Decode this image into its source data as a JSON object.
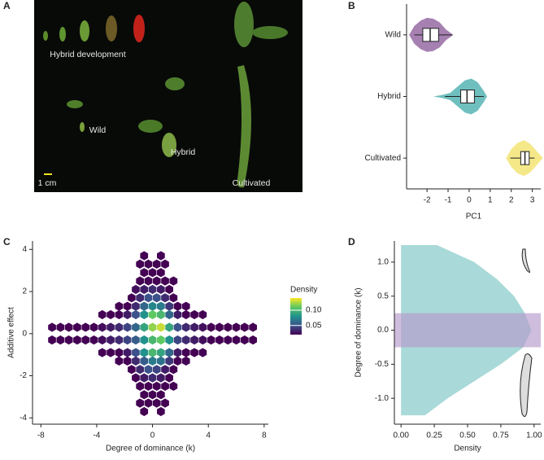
{
  "photo": {
    "panel": "A",
    "labels": [
      "Hybrid development",
      "Wild",
      "Hybrid",
      "Cultivated",
      "1 cm"
    ]
  },
  "chart_data": [
    {
      "type": "box",
      "panel": "B",
      "x_label": "PC1",
      "categories": [
        "Wild",
        "Hybrid",
        "Cultivated"
      ],
      "xlim": [
        -2.97,
        3.4
      ],
      "xticks": [
        -2,
        -1,
        0,
        1,
        2,
        3
      ],
      "boxes": [
        {
          "color": "#9b72a8",
          "min": -2.6,
          "q1": -2.2,
          "median": -1.85,
          "q3": -1.45,
          "max": -0.8,
          "violin_x": [
            -2.85,
            -2.6,
            -2.3,
            -2.0,
            -1.7,
            -1.4,
            -1.1,
            -0.75
          ],
          "violin_w": [
            0,
            0.5,
            0.8,
            0.95,
            0.9,
            0.7,
            0.3,
            0
          ]
        },
        {
          "color": "#5fb8b8",
          "min": -1.15,
          "q1": -0.4,
          "median": -0.1,
          "q3": 0.25,
          "max": 0.7,
          "violin_x": [
            -1.7,
            -1.3,
            -0.9,
            -0.5,
            -0.2,
            0.1,
            0.4,
            0.7,
            0.85
          ],
          "violin_w": [
            0,
            0.08,
            0.2,
            0.6,
            0.9,
            1,
            0.8,
            0.3,
            0
          ]
        },
        {
          "color": "#f3e57c",
          "min": 1.95,
          "q1": 2.45,
          "median": 2.65,
          "q3": 2.85,
          "max": 3.1,
          "violin_x": [
            1.75,
            2.0,
            2.3,
            2.6,
            2.9,
            3.2,
            3.5
          ],
          "violin_w": [
            0,
            0.5,
            0.85,
            1,
            0.8,
            0.4,
            0
          ]
        }
      ]
    },
    {
      "type": "hexbin",
      "panel": "C",
      "x_label": "Degree of dominance (k)",
      "y_label": "Additive effect",
      "xlim": [
        -8.6,
        8.3
      ],
      "ylim": [
        -4.3,
        4.4
      ],
      "xticks": [
        -8,
        -4,
        0,
        4,
        8
      ],
      "yticks": [
        -4,
        -2,
        0,
        2,
        4
      ],
      "colorbar_title": "Density",
      "clim": [
        0.02,
        0.14
      ],
      "cticks": [
        0.05,
        {
          "value": 0.1,
          "label": "0.10"
        }
      ],
      "hexes": [
        [
          -0.6,
          3.7,
          0.01
        ],
        [
          0.6,
          3.7,
          0.01
        ],
        [
          -0.9,
          3.3,
          0.01
        ],
        [
          -0.3,
          3.3,
          0.01
        ],
        [
          0.3,
          3.3,
          0.01
        ],
        [
          0.9,
          3.3,
          0.01
        ],
        [
          -0.6,
          2.9,
          0.015
        ],
        [
          0,
          2.9,
          0.015
        ],
        [
          0.6,
          2.9,
          0.015
        ],
        [
          -0.9,
          2.5,
          0.02
        ],
        [
          -0.3,
          2.5,
          0.02
        ],
        [
          0.3,
          2.5,
          0.02
        ],
        [
          0.9,
          2.5,
          0.02
        ],
        [
          1.5,
          2.5,
          0.01
        ],
        [
          -1.2,
          2.1,
          0.025
        ],
        [
          -0.6,
          2.1,
          0.03
        ],
        [
          0,
          2.1,
          0.035
        ],
        [
          0.6,
          2.1,
          0.03
        ],
        [
          1.2,
          2.1,
          0.02
        ],
        [
          -1.5,
          1.7,
          0.02
        ],
        [
          -0.9,
          1.7,
          0.035
        ],
        [
          -0.3,
          1.7,
          0.05
        ],
        [
          0.3,
          1.7,
          0.05
        ],
        [
          0.9,
          1.7,
          0.035
        ],
        [
          1.5,
          1.7,
          0.02
        ],
        [
          -2.4,
          1.3,
          0.01
        ],
        [
          -1.8,
          1.3,
          0.02
        ],
        [
          -1.2,
          1.3,
          0.035
        ],
        [
          -0.6,
          1.3,
          0.06
        ],
        [
          0,
          1.3,
          0.075
        ],
        [
          0.6,
          1.3,
          0.07
        ],
        [
          1.2,
          1.3,
          0.04
        ],
        [
          1.8,
          1.3,
          0.02
        ],
        [
          2.4,
          1.3,
          0.01
        ],
        [
          -3.6,
          0.9,
          0.01
        ],
        [
          -3,
          0.9,
          0.015
        ],
        [
          -2.4,
          0.9,
          0.02
        ],
        [
          -1.8,
          0.9,
          0.03
        ],
        [
          -1.2,
          0.9,
          0.05
        ],
        [
          -0.6,
          0.9,
          0.08
        ],
        [
          0,
          0.9,
          0.11
        ],
        [
          0.6,
          0.9,
          0.1
        ],
        [
          1.2,
          0.9,
          0.06
        ],
        [
          1.8,
          0.9,
          0.03
        ],
        [
          2.4,
          0.9,
          0.02
        ],
        [
          3,
          0.9,
          0.015
        ],
        [
          3.6,
          0.9,
          0.01
        ],
        [
          -7.2,
          0.3,
          0.01
        ],
        [
          -6.6,
          0.3,
          0.01
        ],
        [
          -6,
          0.3,
          0.015
        ],
        [
          -5.4,
          0.3,
          0.015
        ],
        [
          -4.8,
          0.3,
          0.02
        ],
        [
          -4.2,
          0.3,
          0.02
        ],
        [
          -3.6,
          0.3,
          0.025
        ],
        [
          -3,
          0.3,
          0.03
        ],
        [
          -2.4,
          0.3,
          0.035
        ],
        [
          -1.8,
          0.3,
          0.045
        ],
        [
          -1.2,
          0.3,
          0.06
        ],
        [
          -0.6,
          0.3,
          0.09
        ],
        [
          0,
          0.3,
          0.12
        ],
        [
          0.6,
          0.3,
          0.13
        ],
        [
          1.2,
          0.3,
          0.09
        ],
        [
          1.8,
          0.3,
          0.05
        ],
        [
          2.4,
          0.3,
          0.035
        ],
        [
          3,
          0.3,
          0.03
        ],
        [
          3.6,
          0.3,
          0.025
        ],
        [
          4.2,
          0.3,
          0.02
        ],
        [
          4.8,
          0.3,
          0.02
        ],
        [
          5.4,
          0.3,
          0.015
        ],
        [
          6,
          0.3,
          0.015
        ],
        [
          6.6,
          0.3,
          0.01
        ],
        [
          7.2,
          0.3,
          0.01
        ],
        [
          -7.2,
          -0.3,
          0.01
        ],
        [
          -6.6,
          -0.3,
          0.01
        ],
        [
          -6,
          -0.3,
          0.015
        ],
        [
          -5.4,
          -0.3,
          0.015
        ],
        [
          -4.8,
          -0.3,
          0.02
        ],
        [
          -4.2,
          -0.3,
          0.02
        ],
        [
          -3.6,
          -0.3,
          0.025
        ],
        [
          -3,
          -0.3,
          0.03
        ],
        [
          -2.4,
          -0.3,
          0.035
        ],
        [
          -1.8,
          -0.3,
          0.045
        ],
        [
          -1.2,
          -0.3,
          0.055
        ],
        [
          -0.6,
          -0.3,
          0.08
        ],
        [
          0,
          -0.3,
          0.1
        ],
        [
          0.6,
          -0.3,
          0.11
        ],
        [
          1.2,
          -0.3,
          0.08
        ],
        [
          1.8,
          -0.3,
          0.045
        ],
        [
          2.4,
          -0.3,
          0.035
        ],
        [
          3,
          -0.3,
          0.03
        ],
        [
          3.6,
          -0.3,
          0.025
        ],
        [
          4.2,
          -0.3,
          0.02
        ],
        [
          4.8,
          -0.3,
          0.02
        ],
        [
          5.4,
          -0.3,
          0.015
        ],
        [
          6,
          -0.3,
          0.015
        ],
        [
          6.6,
          -0.3,
          0.01
        ],
        [
          7.2,
          -0.3,
          0.01
        ],
        [
          -3.6,
          -0.9,
          0.01
        ],
        [
          -3,
          -0.9,
          0.015
        ],
        [
          -2.4,
          -0.9,
          0.02
        ],
        [
          -1.8,
          -0.9,
          0.03
        ],
        [
          -1.2,
          -0.9,
          0.05
        ],
        [
          -0.6,
          -0.9,
          0.08
        ],
        [
          0,
          -0.9,
          0.1
        ],
        [
          0.6,
          -0.9,
          0.09
        ],
        [
          1.2,
          -0.9,
          0.06
        ],
        [
          1.8,
          -0.9,
          0.03
        ],
        [
          2.4,
          -0.9,
          0.02
        ],
        [
          3,
          -0.9,
          0.015
        ],
        [
          3.6,
          -0.9,
          0.01
        ],
        [
          -2.4,
          -1.3,
          0.01
        ],
        [
          -1.8,
          -1.3,
          0.02
        ],
        [
          -1.2,
          -1.3,
          0.035
        ],
        [
          -0.6,
          -1.3,
          0.055
        ],
        [
          0,
          -1.3,
          0.07
        ],
        [
          0.6,
          -1.3,
          0.065
        ],
        [
          1.2,
          -1.3,
          0.04
        ],
        [
          1.8,
          -1.3,
          0.02
        ],
        [
          2.4,
          -1.3,
          0.01
        ],
        [
          -1.5,
          -1.7,
          0.02
        ],
        [
          -0.9,
          -1.7,
          0.035
        ],
        [
          -0.3,
          -1.7,
          0.05
        ],
        [
          0.3,
          -1.7,
          0.045
        ],
        [
          0.9,
          -1.7,
          0.03
        ],
        [
          1.5,
          -1.7,
          0.02
        ],
        [
          -1.2,
          -2.1,
          0.02
        ],
        [
          -0.6,
          -2.1,
          0.03
        ],
        [
          0,
          -2.1,
          0.035
        ],
        [
          0.6,
          -2.1,
          0.03
        ],
        [
          1.2,
          -2.1,
          0.02
        ],
        [
          -0.9,
          -2.5,
          0.02
        ],
        [
          -0.3,
          -2.5,
          0.02
        ],
        [
          0.3,
          -2.5,
          0.02
        ],
        [
          0.9,
          -2.5,
          0.015
        ],
        [
          1.5,
          -2.5,
          0.01
        ],
        [
          -0.6,
          -2.9,
          0.015
        ],
        [
          0,
          -2.9,
          0.015
        ],
        [
          0.6,
          -2.9,
          0.015
        ],
        [
          -0.9,
          -3.3,
          0.01
        ],
        [
          -0.3,
          -3.3,
          0.01
        ],
        [
          0.3,
          -3.3,
          0.01
        ],
        [
          0.9,
          -3.3,
          0.01
        ],
        [
          -0.6,
          -3.7,
          0.01
        ],
        [
          0.6,
          -3.7,
          0.01
        ]
      ]
    },
    {
      "type": "density",
      "panel": "D",
      "x_label": "Density",
      "y_label": "Degree of dominance (k)",
      "xlim": [
        -0.05,
        1.05
      ],
      "ylim": [
        -1.38,
        1.31
      ],
      "xticks": [
        {
          "value": 0,
          "label": "0.00"
        },
        0.25,
        {
          "value": 0.5,
          "label": "0.50"
        },
        0.75,
        {
          "value": 1,
          "label": "1.00"
        }
      ],
      "yticks": [
        {
          "value": -1,
          "label": "-1.0"
        },
        -0.5,
        {
          "value": 0,
          "label": "0.0"
        },
        0.5,
        {
          "value": 1,
          "label": "1.0"
        }
      ],
      "color": "#a9d9d9",
      "band": [
        -0.25,
        0.25
      ],
      "band_color": "#b69acb",
      "y": [
        1.25,
        1.0,
        0.75,
        0.5,
        0.25,
        0.0,
        -0.25,
        -0.5,
        -0.75,
        -1.0,
        -1.25
      ],
      "values": [
        0.27,
        0.55,
        0.72,
        0.85,
        0.93,
        0.98,
        0.92,
        0.75,
        0.55,
        0.35,
        0.18
      ]
    }
  ]
}
